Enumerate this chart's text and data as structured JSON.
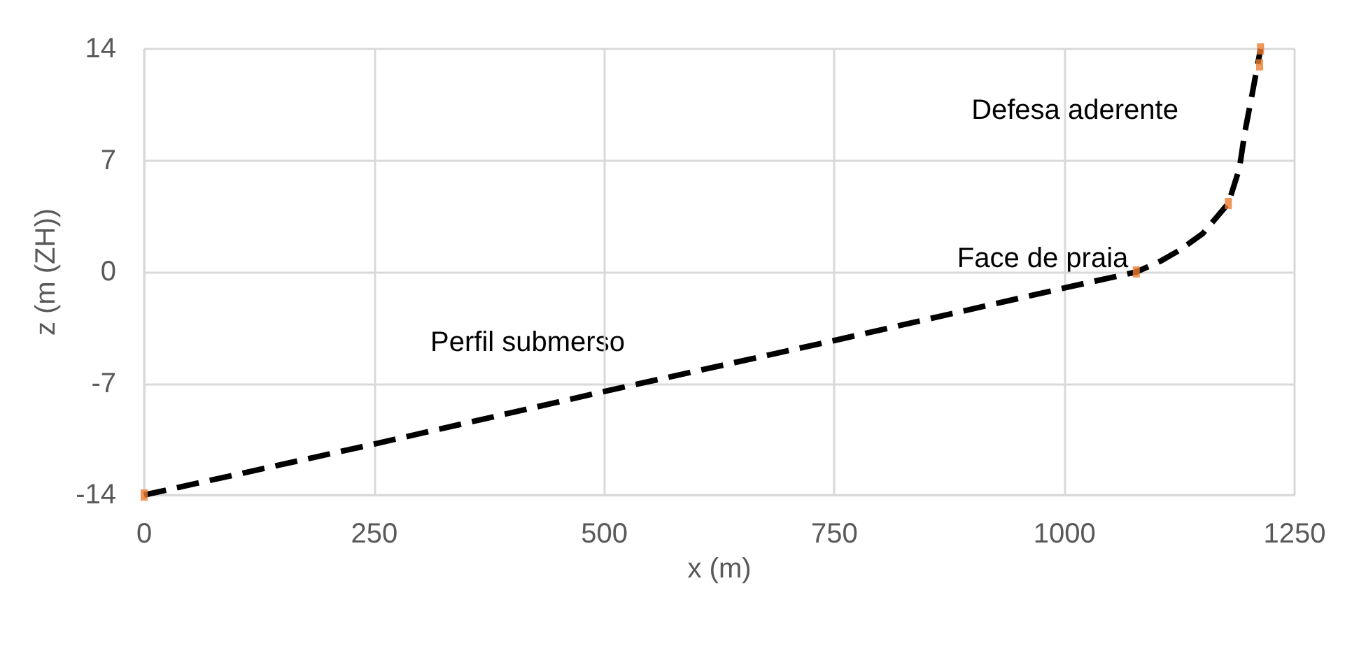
{
  "chart_data": {
    "type": "line",
    "xlabel": "x (m)",
    "ylabel": "z (m (ZH))",
    "xlim": [
      0,
      1250
    ],
    "xticks": [
      0,
      250,
      500,
      750,
      1000,
      1250
    ],
    "ylim": [
      -14,
      14
    ],
    "yticks": [
      -14,
      -7,
      0,
      7,
      14
    ],
    "grid": true,
    "series": [
      {
        "color": "#000000",
        "line_style": "dashed",
        "marker": "none",
        "x": [
          0,
          250,
          500,
          750,
          1000,
          1078,
          1105,
          1126,
          1150,
          1178,
          1190,
          1196,
          1204,
          1213
        ],
        "values": [
          -14,
          -10.8,
          -7.5,
          -4.3,
          -1,
          0,
          0.7,
          1.4,
          2.4,
          4.3,
          6.5,
          8.8,
          11.2,
          14
        ]
      },
      {
        "type": "scatter",
        "color": "#ed7d31",
        "marker": "square",
        "x": [
          0,
          1078,
          1178,
          1212,
          1213
        ],
        "values": [
          -14,
          0,
          4.3,
          13,
          14
        ]
      }
    ],
    "annotations": [
      "Perfil submerso",
      "Face de praia",
      "Defesa aderente"
    ]
  }
}
